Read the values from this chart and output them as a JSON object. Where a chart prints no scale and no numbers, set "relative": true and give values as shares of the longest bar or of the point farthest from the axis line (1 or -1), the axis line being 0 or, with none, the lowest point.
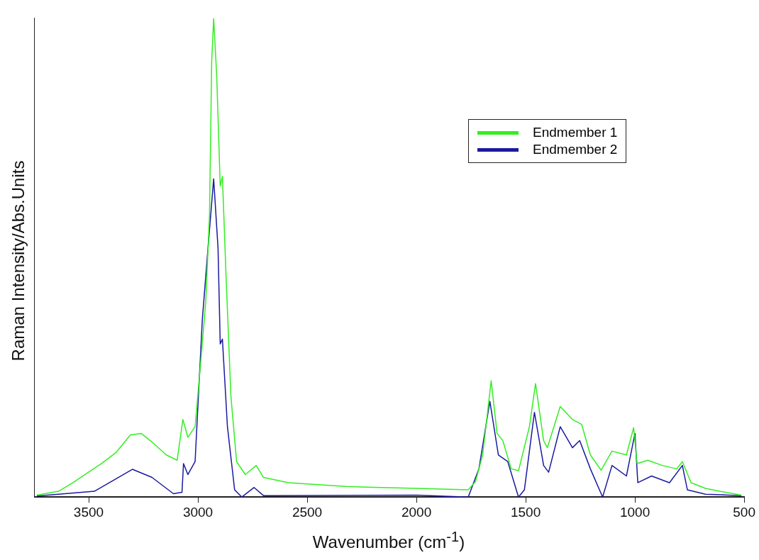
{
  "chart_data": {
    "type": "line",
    "xlabel": "Wavenumber (cm$^{-1}$)",
    "ylabel": "Raman Intensity/Abs.Units",
    "relative": true,
    "xlim": [
      3750,
      500
    ],
    "xticks": [
      3500,
      3000,
      2500,
      2000,
      1500,
      1000,
      500
    ],
    "legend": "top right",
    "grid": false,
    "marker": "none",
    "line_style": "solid",
    "series": [
      {
        "name": "Endmember 1",
        "color": "#33ee22",
        "x": [
          3737,
          3638,
          3572,
          3507,
          3441,
          3375,
          3309,
          3260,
          3210,
          3145,
          3095,
          3069,
          3046,
          3013,
          2980,
          2964,
          2947,
          2937,
          2928,
          2914,
          2898,
          2888,
          2872,
          2849,
          2823,
          2783,
          2733,
          2700,
          2585,
          2322,
          1993,
          1763,
          1730,
          1697,
          1658,
          1631,
          1605,
          1566,
          1533,
          1483,
          1455,
          1418,
          1401,
          1342,
          1286,
          1244,
          1204,
          1155,
          1105,
          1039,
          1006,
          990,
          941,
          875,
          809,
          783,
          743,
          677,
          612,
          513
        ],
        "values": [
          0.004,
          0.012,
          0.03,
          0.05,
          0.07,
          0.093,
          0.13,
          0.133,
          0.115,
          0.088,
          0.077,
          0.162,
          0.125,
          0.147,
          0.32,
          0.41,
          0.59,
          0.91,
          1.0,
          0.88,
          0.65,
          0.67,
          0.47,
          0.21,
          0.074,
          0.047,
          0.066,
          0.041,
          0.03,
          0.022,
          0.018,
          0.015,
          0.032,
          0.088,
          0.243,
          0.133,
          0.118,
          0.059,
          0.055,
          0.147,
          0.237,
          0.118,
          0.103,
          0.189,
          0.162,
          0.152,
          0.088,
          0.056,
          0.096,
          0.088,
          0.145,
          0.07,
          0.077,
          0.066,
          0.059,
          0.074,
          0.03,
          0.018,
          0.012,
          0.004
        ]
      },
      {
        "name": "Endmember 2",
        "color": "#1a1aa0",
        "x": [
          3737,
          3474,
          3300,
          3210,
          3112,
          3073,
          3066,
          3046,
          3013,
          2980,
          2954,
          2928,
          2908,
          2898,
          2888,
          2865,
          2832,
          2799,
          2743,
          2700,
          2000,
          1763,
          1714,
          1664,
          1625,
          1582,
          1533,
          1506,
          1460,
          1418,
          1395,
          1342,
          1286,
          1253,
          1204,
          1148,
          1105,
          1039,
          1000,
          987,
          924,
          842,
          783,
          760,
          677,
          513
        ],
        "values": [
          0.002,
          0.012,
          0.058,
          0.041,
          0.007,
          0.01,
          0.07,
          0.047,
          0.074,
          0.37,
          0.52,
          0.665,
          0.52,
          0.32,
          0.33,
          0.147,
          0.015,
          0.0,
          0.02,
          0.003,
          0.004,
          0.0,
          0.059,
          0.2,
          0.088,
          0.074,
          0.0,
          0.015,
          0.177,
          0.066,
          0.052,
          0.147,
          0.103,
          0.118,
          0.059,
          0.0,
          0.066,
          0.044,
          0.133,
          0.03,
          0.044,
          0.03,
          0.066,
          0.015,
          0.006,
          0.003
        ]
      }
    ]
  }
}
